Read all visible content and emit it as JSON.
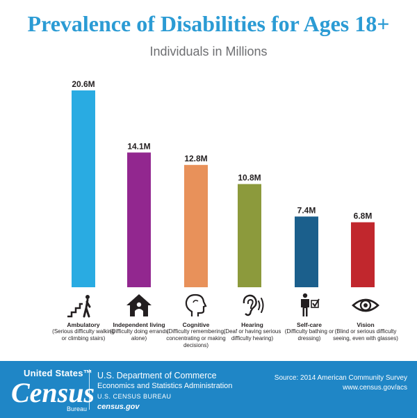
{
  "title": "Prevalence of Disabilities for Ages 18+",
  "subtitle": "Individuals in Millions",
  "chart_data": {
    "type": "bar",
    "title": "Prevalence of Disabilities for Ages 18+",
    "subtitle": "Individuals in Millions",
    "unit": "M",
    "categories": [
      "Ambulatory",
      "Independent living",
      "Cognitive",
      "Hearing",
      "Self-care",
      "Vision"
    ],
    "values": [
      20.6,
      14.1,
      12.8,
      10.8,
      7.4,
      6.8
    ],
    "value_labels": [
      "20.6M",
      "14.1M",
      "12.8M",
      "10.8M",
      "7.4M",
      "6.8M"
    ],
    "colors": [
      "#29abe2",
      "#92278f",
      "#e8915a",
      "#8c9a3c",
      "#1b5f8c",
      "#c1272d"
    ],
    "ylim": [
      0,
      20.6
    ],
    "grid": false,
    "legend": "none"
  },
  "categories": [
    {
      "name": "Ambulatory",
      "desc": "(Serious difficulty walking or climbing stairs)",
      "icon": "stairs-walker-icon"
    },
    {
      "name": "Independent living",
      "desc": "(Difficulty doing errands alone)",
      "icon": "house-person-icon"
    },
    {
      "name": "Cognitive",
      "desc": "(Difficulty remembering, concentrating or making decisions)",
      "icon": "head-profile-icon"
    },
    {
      "name": "Hearing",
      "desc": "(Deaf or having serious difficulty hearing)",
      "icon": "ear-icon"
    },
    {
      "name": "Self-care",
      "desc": "(Difficulty bathing or dressing)",
      "icon": "person-checkbox-icon"
    },
    {
      "name": "Vision",
      "desc": "(Blind or serious difficulty seeing, even with glasses)",
      "icon": "eye-icon"
    }
  ],
  "footer": {
    "logo_top": "United States™",
    "logo_main": "Census",
    "logo_bottom": "Bureau",
    "dept_line1": "U.S. Department of Commerce",
    "dept_line2": "Economics and Statistics Administration",
    "dept_line3": "U.S. CENSUS BUREAU",
    "dept_line4": "census.gov",
    "source_line1": "Source: 2014 American Community Survey",
    "source_line2": "www.census.gov/acs"
  }
}
